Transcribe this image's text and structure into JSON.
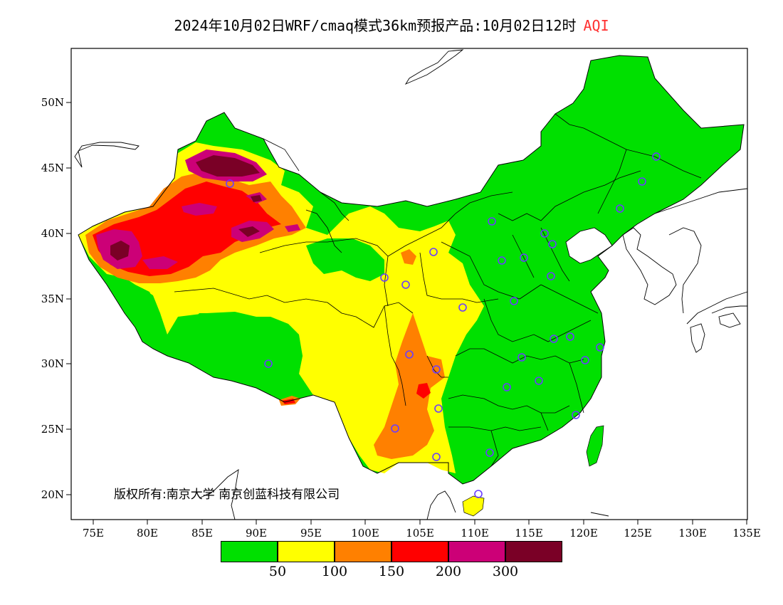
{
  "title": {
    "main": "2024年10月02日WRF/cmaq模式36km预报产品:10月02日12时",
    "variable": "AQI",
    "variable_color": "#ff3030"
  },
  "copyright": "版权所有:南京大学 南京创蓝科技有限公司",
  "axes": {
    "lat_ticks": [
      "50N",
      "45N",
      "40N",
      "35N",
      "30N",
      "25N",
      "20N"
    ],
    "lon_ticks": [
      "75E",
      "80E",
      "85E",
      "90E",
      "95E",
      "100E",
      "105E",
      "110E",
      "115E",
      "120E",
      "125E",
      "130E",
      "135E"
    ]
  },
  "legend": {
    "colors": [
      "#00e000",
      "#ffff00",
      "#ff8000",
      "#ff0000",
      "#cc0077",
      "#7a0026"
    ],
    "ticks": [
      "50",
      "100",
      "150",
      "200",
      "300"
    ]
  },
  "map": {
    "background": "#ffffff",
    "dominant_levels": {
      "east_china": "good (green)",
      "central_sichuan_yunnan": "moderate (yellow/orange)",
      "xinjiang_tarim": "unhealthy to hazardous (red/purple)"
    }
  }
}
